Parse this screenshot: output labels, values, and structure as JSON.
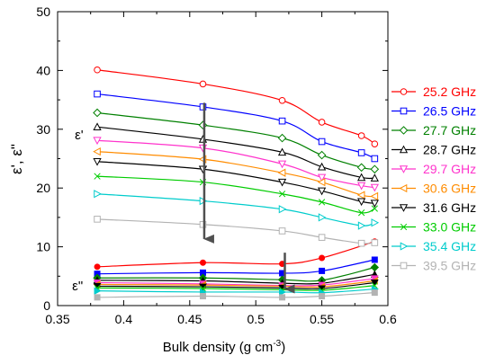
{
  "chart_data": {
    "type": "line",
    "title": "",
    "xlabel": "Bulk density (g cm",
    "xlabel_superscript": "-3",
    "xlabel_suffix": ")",
    "ylabel": "ε', ε\"",
    "xlim": [
      0.35,
      0.6
    ],
    "ylim": [
      0,
      50
    ],
    "xticks": [
      0.35,
      0.4,
      0.45,
      0.5,
      0.55,
      0.6
    ],
    "xtick_labels": [
      "0.35",
      "0.4",
      "0.45",
      "0.5",
      "0.55",
      "0.6"
    ],
    "yticks": [
      0,
      10,
      20,
      30,
      40,
      50
    ],
    "ytick_labels": [
      "0",
      "10",
      "20",
      "30",
      "40",
      "50"
    ],
    "grid": false,
    "legend_position": "right",
    "annotations": [
      {
        "text": "ε'",
        "x": 0.363,
        "y": 28.3
      },
      {
        "text": "ε\"",
        "x": 0.361,
        "y": 2.6
      }
    ],
    "arrows": [
      {
        "x": 0.461,
        "y_from": 34.5,
        "y_to": 9.5
      },
      {
        "x": 0.522,
        "y_from": 9.0,
        "y_to": 1.0
      }
    ],
    "x": [
      0.38,
      0.46,
      0.52,
      0.55,
      0.58,
      0.59
    ],
    "series": [
      {
        "name": "25.2 GHz",
        "color": "#ff0000",
        "marker": "circle-open",
        "eps_real": [
          40.1,
          37.7,
          34.9,
          31.2,
          28.9,
          27.5
        ],
        "eps_imag": [
          6.6,
          7.3,
          7.1,
          8.1,
          null,
          10.9
        ]
      },
      {
        "name": "26.5 GHz",
        "color": "#0000ff",
        "marker": "square-open",
        "eps_real": [
          36.0,
          33.8,
          31.4,
          27.9,
          26.0,
          25.0
        ],
        "eps_imag": [
          5.4,
          5.6,
          5.5,
          5.9,
          null,
          7.8
        ]
      },
      {
        "name": "27.7 GHz",
        "color": "#008000",
        "marker": "diamond-open",
        "eps_real": [
          32.8,
          30.7,
          28.5,
          25.6,
          23.5,
          23.2
        ],
        "eps_imag": [
          4.7,
          4.7,
          4.4,
          4.3,
          null,
          6.5
        ]
      },
      {
        "name": "28.7 GHz",
        "color": "#000000",
        "marker": "triangle-up-open",
        "eps_real": [
          30.4,
          28.3,
          26.1,
          23.6,
          21.8,
          21.7
        ],
        "eps_imag": [
          4.3,
          4.2,
          3.8,
          3.8,
          null,
          5.3
        ]
      },
      {
        "name": "29.7 GHz",
        "color": "#ff33cc",
        "marker": "triangle-down-open",
        "eps_real": [
          28.1,
          26.8,
          24.1,
          21.8,
          20.4,
          20.1
        ],
        "eps_imag": [
          3.9,
          3.7,
          3.4,
          3.5,
          null,
          4.6
        ]
      },
      {
        "name": "30.6 GHz",
        "color": "#ff8c00",
        "marker": "triangle-left-open",
        "eps_real": [
          26.2,
          24.9,
          22.6,
          21.0,
          18.8,
          18.6
        ],
        "eps_imag": [
          3.6,
          3.5,
          3.3,
          3.2,
          null,
          4.2
        ]
      },
      {
        "name": "31.6 GHz",
        "color": "#000000",
        "marker": "triangle-down-open",
        "eps_real": [
          24.5,
          23.2,
          21.0,
          19.5,
          17.7,
          17.4
        ],
        "eps_imag": [
          3.3,
          3.2,
          3.0,
          2.9,
          null,
          3.9
        ]
      },
      {
        "name": "33.0 GHz",
        "color": "#00cc00",
        "marker": "x",
        "eps_real": [
          22.0,
          21.0,
          19.0,
          17.6,
          15.8,
          16.5
        ],
        "eps_imag": [
          3.0,
          2.9,
          2.7,
          2.6,
          null,
          3.4
        ]
      },
      {
        "name": "35.4 GHz",
        "color": "#00cccc",
        "marker": "triangle-right-open",
        "eps_real": [
          19.0,
          17.8,
          16.4,
          15.0,
          13.6,
          14.1
        ],
        "eps_imag": [
          2.5,
          2.3,
          2.3,
          2.2,
          null,
          2.8
        ]
      },
      {
        "name": "39.5 GHz",
        "color": "#b3b3b3",
        "marker": "square-open",
        "eps_real": [
          14.7,
          13.8,
          12.7,
          11.6,
          10.6,
          10.7
        ],
        "eps_imag": [
          1.4,
          1.6,
          1.4,
          1.6,
          null,
          2.2
        ]
      }
    ]
  }
}
